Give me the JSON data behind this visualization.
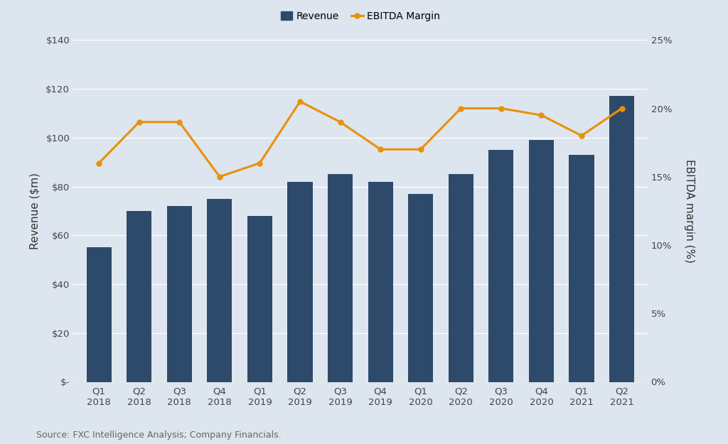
{
  "categories": [
    "Q1\n2018",
    "Q2\n2018",
    "Q3\n2018",
    "Q4\n2018",
    "Q1\n2019",
    "Q2\n2019",
    "Q3\n2019",
    "Q4\n2019",
    "Q1\n2020",
    "Q2\n2020",
    "Q3\n2020",
    "Q4\n2020",
    "Q1\n2021",
    "Q2\n2021"
  ],
  "revenue": [
    55,
    70,
    72,
    75,
    68,
    82,
    85,
    82,
    77,
    85,
    95,
    99,
    93,
    117
  ],
  "ebitda_margin": [
    16.0,
    19.0,
    19.0,
    15.0,
    16.0,
    20.5,
    19.0,
    17.0,
    17.0,
    20.0,
    20.0,
    19.5,
    18.0,
    20.0
  ],
  "bar_color": "#2E4A6B",
  "line_color": "#E8920A",
  "background_color": "#DDE5EE",
  "ylabel_left": "Revenue ($m)",
  "ylabel_right": "EBITDA margin (%)",
  "ylim_left": [
    0,
    140
  ],
  "ylim_right": [
    0,
    25
  ],
  "yticks_left": [
    0,
    20,
    40,
    60,
    80,
    100,
    120,
    140
  ],
  "yticks_right": [
    0,
    5,
    10,
    15,
    20,
    25
  ],
  "ytick_labels_left": [
    "$-",
    "$20",
    "$40",
    "$60",
    "$80",
    "$100",
    "$120",
    "$140"
  ],
  "ytick_labels_right": [
    "0%",
    "5%",
    "10%",
    "15%",
    "20%",
    "25%"
  ],
  "legend_revenue": "Revenue",
  "legend_ebitda": "EBITDA Margin",
  "source_text": "Source: FXC Intelligence Analysis; Company Financials.",
  "axis_label_fontsize": 11,
  "tick_fontsize": 9.5,
  "source_fontsize": 9,
  "legend_fontsize": 10,
  "line_width": 2.2,
  "marker": "o",
  "marker_size": 5
}
